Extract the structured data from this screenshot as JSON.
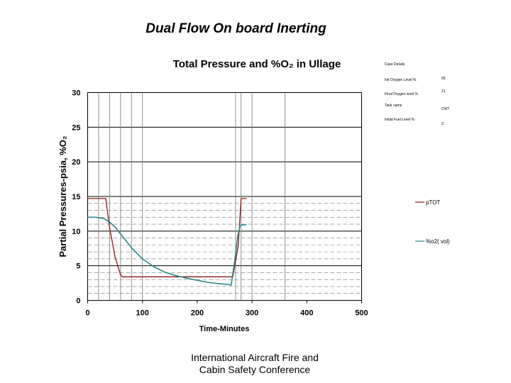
{
  "slide": {
    "title": "Dual Flow On board Inerting",
    "footer_line1": "International Aircraft Fire and",
    "footer_line2": "Cabin Safety Conference"
  },
  "case_details": {
    "heading": "Case Details",
    "rows": [
      {
        "label": "Init Oxygen Level %",
        "value": "65"
      },
      {
        "label": "Final Oxygen level %",
        "value": "21"
      },
      {
        "label": "Tank name",
        "value": "CWT"
      },
      {
        "label": "Initial Fuel Level %",
        "value": "3"
      }
    ]
  },
  "chart_data": {
    "type": "line",
    "title": "Total Pressure and %O₂ in Ullage",
    "xlabel": "Time-Minutes",
    "ylabel": "Partial Pressures-psia, %O₂",
    "xlim": [
      0,
      500
    ],
    "ylim": [
      0,
      30
    ],
    "xticks": [
      0,
      100,
      200,
      300,
      400,
      500
    ],
    "yticks": [
      0,
      5,
      10,
      15,
      20,
      25,
      30
    ],
    "grid": true,
    "legend_position": "right",
    "series": [
      {
        "name": "pTOT",
        "color": "#8b1a1a",
        "x": [
          0,
          33,
          40,
          50,
          60,
          63,
          265,
          275,
          280,
          285,
          290
        ],
        "y": [
          14.7,
          14.7,
          10.5,
          6.3,
          3.7,
          3.4,
          3.4,
          8,
          14.7,
          14.7,
          14.7
        ]
      },
      {
        "name": "%o2( vol)",
        "color": "#2b8a8a",
        "x": [
          0,
          15,
          30,
          40,
          50,
          60,
          80,
          100,
          120,
          140,
          160,
          180,
          200,
          220,
          240,
          255,
          262,
          268,
          274,
          278,
          282,
          290
        ],
        "y": [
          12,
          12,
          11.8,
          11.3,
          10.6,
          9.6,
          7.6,
          6.0,
          4.9,
          4.1,
          3.6,
          3.2,
          2.9,
          2.6,
          2.4,
          2.3,
          2.2,
          5.5,
          9.3,
          10.8,
          10.9,
          10.9
        ]
      }
    ]
  }
}
